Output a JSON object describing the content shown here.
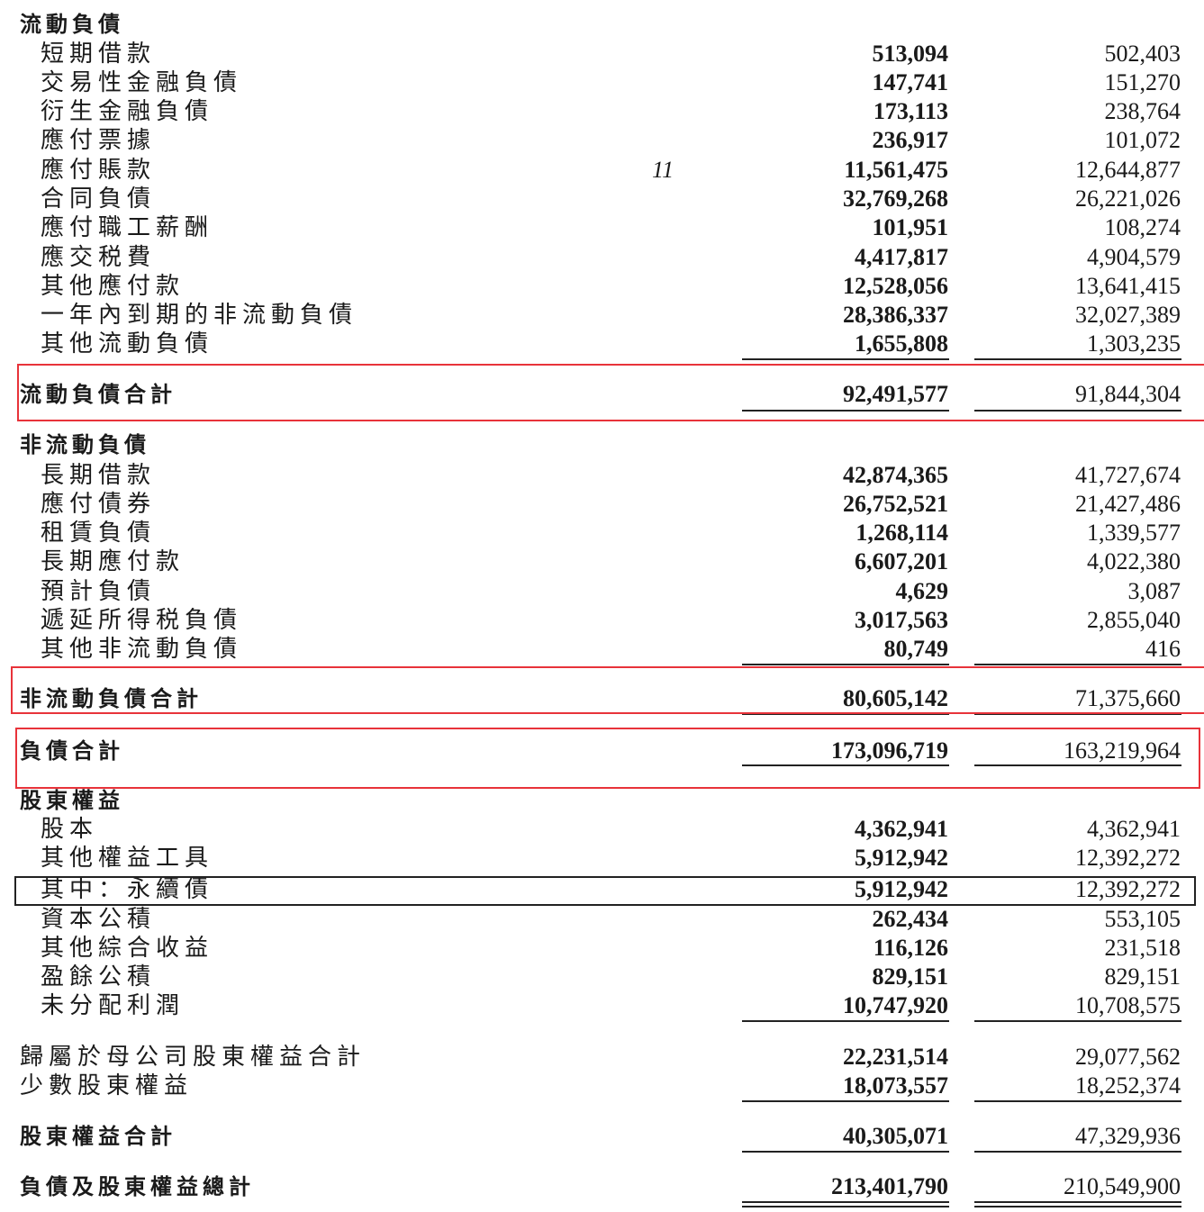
{
  "rows": [
    {
      "label": "流動負債",
      "type": "heading"
    },
    {
      "label": "短期借款",
      "type": "item",
      "current": "513,094",
      "prior": "502,403"
    },
    {
      "label": "交易性金融負債",
      "type": "item",
      "current": "147,741",
      "prior": "151,270"
    },
    {
      "label": "衍生金融負債",
      "type": "item",
      "current": "173,113",
      "prior": "238,764"
    },
    {
      "label": "應付票據",
      "type": "item",
      "current": "236,917",
      "prior": "101,072"
    },
    {
      "label": "應付賬款",
      "type": "item",
      "note": "11",
      "current": "11,561,475",
      "prior": "12,644,877"
    },
    {
      "label": "合同負債",
      "type": "item",
      "current": "32,769,268",
      "prior": "26,221,026"
    },
    {
      "label": "應付職工薪酬",
      "type": "item",
      "current": "101,951",
      "prior": "108,274"
    },
    {
      "label": "應交税費",
      "type": "item",
      "current": "4,417,817",
      "prior": "4,904,579"
    },
    {
      "label": "其他應付款",
      "type": "item",
      "current": "12,528,056",
      "prior": "13,641,415"
    },
    {
      "label": "一年內到期的非流動負債",
      "type": "item",
      "current": "28,386,337",
      "prior": "32,027,389"
    },
    {
      "label": "其他流動負債",
      "type": "item",
      "current": "1,655,808",
      "prior": "1,303,235"
    },
    {
      "label": "流動負債合計",
      "type": "total",
      "current": "92,491,577",
      "prior": "91,844,304",
      "highlighted": true
    },
    {
      "label": "非流動負債",
      "type": "heading"
    },
    {
      "label": "長期借款",
      "type": "item",
      "current": "42,874,365",
      "prior": "41,727,674"
    },
    {
      "label": "應付債券",
      "type": "item",
      "current": "26,752,521",
      "prior": "21,427,486"
    },
    {
      "label": "租賃負債",
      "type": "item",
      "current": "1,268,114",
      "prior": "1,339,577"
    },
    {
      "label": "長期應付款",
      "type": "item",
      "current": "6,607,201",
      "prior": "4,022,380"
    },
    {
      "label": "預計負債",
      "type": "item",
      "current": "4,629",
      "prior": "3,087"
    },
    {
      "label": "遞延所得税負債",
      "type": "item",
      "current": "3,017,563",
      "prior": "2,855,040"
    },
    {
      "label": "其他非流動負債",
      "type": "item",
      "current": "80,749",
      "prior": "416"
    },
    {
      "label": "非流動負債合計",
      "type": "total",
      "current": "80,605,142",
      "prior": "71,375,660",
      "highlighted": true
    },
    {
      "label": "負債合計",
      "type": "total",
      "current": "173,096,719",
      "prior": "163,219,964",
      "highlighted": true
    },
    {
      "label": "股東權益",
      "type": "heading"
    },
    {
      "label": "股本",
      "type": "item",
      "current": "4,362,941",
      "prior": "4,362,941"
    },
    {
      "label": "其他權益工具",
      "type": "item",
      "current": "5,912,942",
      "prior": "12,392,272"
    },
    {
      "label": "其中：永續債",
      "type": "item",
      "current": "5,912,942",
      "prior": "12,392,272",
      "boxed": true
    },
    {
      "label": "資本公積",
      "type": "item",
      "current": "262,434",
      "prior": "553,105"
    },
    {
      "label": "其他綜合收益",
      "type": "item",
      "current": "116,126",
      "prior": "231,518"
    },
    {
      "label": "盈餘公積",
      "type": "item",
      "current": "829,151",
      "prior": "829,151"
    },
    {
      "label": "未分配利潤",
      "type": "item",
      "current": "10,747,920",
      "prior": "10,708,575"
    },
    {
      "label": "歸屬於母公司股東權益合計",
      "type": "subtotal",
      "current": "22,231,514",
      "prior": "29,077,562"
    },
    {
      "label": "少數股東權益",
      "type": "subtotal",
      "current": "18,073,557",
      "prior": "18,252,374"
    },
    {
      "label": "股東權益合計",
      "type": "total",
      "current": "40,305,071",
      "prior": "47,329,936"
    },
    {
      "label": "負債及股東權益總計",
      "type": "total",
      "current": "213,401,790",
      "prior": "210,549,900"
    }
  ],
  "colors": {
    "highlight_box": "#e8333a",
    "text": "#1a1a1a"
  }
}
